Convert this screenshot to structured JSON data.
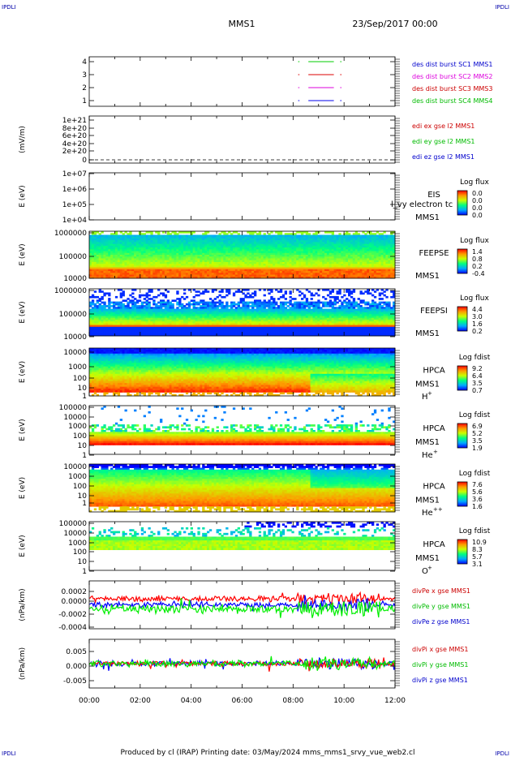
{
  "header": {
    "corner_tl": "IPDLI",
    "corner_tr": "IPDLI",
    "corner_bl": "IPDLI",
    "corner_br": "IPDLI",
    "spacecraft": "MMS1",
    "datetime": "23/Sep/2017 00:00"
  },
  "footer": {
    "text": "Produced by cl (IRAP)   Printing date: 03/May/2024   mms_mms1_srvy_vue_web2.cl"
  },
  "colors": {
    "red": "#ff0000",
    "green": "#00cc00",
    "blue": "#0000ff",
    "magenta": "#dd00dd",
    "navy": "#000099",
    "darkred": "#cc0000"
  },
  "chart_data": {
    "type": "multi-panel time series",
    "x_axis": {
      "ticks": [
        "00:00",
        "02:00",
        "04:00",
        "06:00",
        "08:00",
        "10:00",
        "12:00"
      ],
      "range_hours": [
        0,
        12
      ]
    },
    "panels": [
      {
        "id": "burst",
        "type": "line",
        "ylabel": "",
        "yticks": [
          "4",
          "3",
          "2",
          "1"
        ],
        "labels": [
          {
            "text": "des dist burst SC1 MMS1",
            "color": "#0000cc"
          },
          {
            "text": "des dist burst SC2 MMS2",
            "color": "#dd00dd"
          },
          {
            "text": "des dist burst SC3 MMS3",
            "color": "#cc0000"
          },
          {
            "text": "des dist burst SC4 MMS4",
            "color": "#00bb00"
          }
        ],
        "series": [
          {
            "level": 4,
            "color": "#00cc00",
            "segments": [
              [
                8.2,
                8.25
              ],
              [
                8.6,
                9.6
              ],
              [
                9.85,
                9.9
              ]
            ]
          },
          {
            "level": 3,
            "color": "#dd0000",
            "segments": [
              [
                8.2,
                8.25
              ],
              [
                8.6,
                9.6
              ],
              [
                9.85,
                9.9
              ]
            ]
          },
          {
            "level": 2,
            "color": "#dd00dd",
            "segments": [
              [
                8.2,
                8.25
              ],
              [
                8.6,
                9.6
              ],
              [
                9.85,
                9.9
              ]
            ]
          },
          {
            "level": 1,
            "color": "#0000ee",
            "segments": [
              [
                8.2,
                8.25
              ],
              [
                8.6,
                9.6
              ],
              [
                9.85,
                9.9
              ]
            ]
          }
        ]
      },
      {
        "id": "edi",
        "type": "line",
        "ylabel": "(mV/m)",
        "yticks": [
          "1e+21",
          "8e+20",
          "6e+20",
          "4e+20",
          "2e+20",
          "0"
        ],
        "labels": [
          {
            "text": "edi ex gse l2 MMS1",
            "color": "#cc0000"
          },
          {
            "text": "edi ey gse l2 MMS1",
            "color": "#00bb00"
          },
          {
            "text": "edi ez gse l2 MMS1",
            "color": "#0000cc"
          }
        ]
      },
      {
        "id": "eis",
        "type": "heatmap",
        "ylabel": "E (eV)",
        "yticks": [
          "1e+07",
          "1e+06",
          "1e+05",
          "1e+04"
        ],
        "inst": [
          "EIS",
          "MMS1"
        ],
        "extra_label": "l_vy electron tc",
        "cbar_title": "Log flux",
        "cbar_ticks": [
          "0.0",
          "0.0",
          "0.0",
          "0.0"
        ]
      },
      {
        "id": "feepse",
        "type": "heatmap",
        "ylabel": "E (eV)",
        "yticks": [
          "1000000",
          "100000",
          "10000"
        ],
        "inst": [
          "FEEPSE",
          "MMS1"
        ],
        "cbar_title": "Log flux",
        "cbar_ticks": [
          "1.4",
          "0.8",
          "0.2",
          "-0.4"
        ]
      },
      {
        "id": "feepsi",
        "type": "heatmap",
        "ylabel": "E (eV)",
        "yticks": [
          "1000000",
          "100000",
          "10000"
        ],
        "inst": [
          "FEEPSI",
          "MMS1"
        ],
        "cbar_title": "Log flux",
        "cbar_ticks": [
          "4.4",
          "3.0",
          "1.6",
          "0.2"
        ]
      },
      {
        "id": "hpca_h",
        "type": "heatmap",
        "ylabel": "E (eV)",
        "yticks": [
          "10000",
          "1000",
          "100",
          "10",
          "1"
        ],
        "inst": [
          "HPCA",
          "MMS1"
        ],
        "species": "H",
        "species_sup": "+",
        "cbar_title": "Log fdist",
        "cbar_ticks": [
          "9.2",
          "6.4",
          "3.5",
          "0.7"
        ]
      },
      {
        "id": "hpca_he",
        "type": "heatmap",
        "ylabel": "E (eV)",
        "yticks": [
          "100000",
          "10000",
          "1000",
          "100",
          "10",
          "1"
        ],
        "inst": [
          "HPCA",
          "MMS1"
        ],
        "species": "He",
        "species_sup": "+",
        "cbar_title": "Log fdist",
        "cbar_ticks": [
          "6.9",
          "5.2",
          "3.5",
          "1.9"
        ]
      },
      {
        "id": "hpca_he2",
        "type": "heatmap",
        "ylabel": "E (eV)",
        "yticks": [
          "10000",
          "1000",
          "100",
          "10",
          "1"
        ],
        "inst": [
          "HPCA",
          "MMS1"
        ],
        "species": "He",
        "species_sup": "++",
        "cbar_title": "Log fdist",
        "cbar_ticks": [
          "7.6",
          "5.6",
          "3.6",
          "1.6"
        ]
      },
      {
        "id": "hpca_o",
        "type": "heatmap",
        "ylabel": "E (eV)",
        "yticks": [
          "100000",
          "10000",
          "1000",
          "100",
          "10",
          "1"
        ],
        "inst": [
          "HPCA",
          "MMS1"
        ],
        "species": "O",
        "species_sup": "+",
        "cbar_title": "Log fdist",
        "cbar_ticks": [
          "10.9",
          "8.3",
          "5.7",
          "3.1"
        ]
      },
      {
        "id": "divpe",
        "type": "line",
        "ylabel": "(nPa/km)",
        "yticks": [
          "0.0002",
          "0.0000",
          "-0.0002",
          "-0.0004"
        ],
        "ylim": [
          -0.00045,
          0.00035
        ],
        "labels": [
          {
            "text": "divPe x gse MMS1",
            "color": "#cc0000"
          },
          {
            "text": "divPe y gse MMS1",
            "color": "#00bb00"
          },
          {
            "text": "divPe z gse MMS1",
            "color": "#0000cc"
          }
        ],
        "series": [
          {
            "name": "x",
            "color": "#ff0000",
            "mean": 5e-05,
            "noise": 4e-05
          },
          {
            "name": "z",
            "color": "#0000ff",
            "mean": -5e-05,
            "noise": 4e-05
          },
          {
            "name": "y",
            "color": "#00ee00",
            "mean": -0.00012,
            "noise": 6e-05
          }
        ]
      },
      {
        "id": "divpi",
        "type": "line",
        "ylabel": "(nPa/km)",
        "yticks": [
          "0.005",
          "0.000",
          "-0.005"
        ],
        "ylim": [
          -0.0085,
          0.0085
        ],
        "labels": [
          {
            "text": "divPi x gse MMS1",
            "color": "#cc0000"
          },
          {
            "text": "divPi y gse MMS1",
            "color": "#00bb00"
          },
          {
            "text": "divPi z gse MMS1",
            "color": "#0000cc"
          }
        ],
        "series": [
          {
            "name": "z",
            "color": "#0000ff",
            "mean": 0.0,
            "noise": 0.0008
          },
          {
            "name": "x",
            "color": "#ff0000",
            "mean": 0.0,
            "noise": 0.0007
          },
          {
            "name": "y",
            "color": "#00ee00",
            "mean": 0.0,
            "noise": 0.0009
          }
        ]
      }
    ]
  }
}
